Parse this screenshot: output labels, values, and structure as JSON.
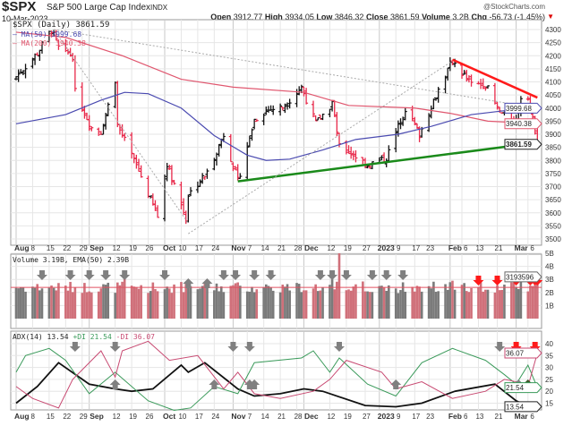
{
  "header": {
    "symbol": "$SPX",
    "name": "S&P 500 Large Cap Index",
    "exchange": "INDX",
    "watermark": "@StockCharts.com",
    "date": "10-Mar-2023",
    "open_label": "Open",
    "open": "3912.77",
    "high_label": "High",
    "high": "3934.05",
    "low_label": "Low",
    "low": "3846.32",
    "close_label": "Close",
    "close": "3861.59",
    "volume_label": "Volume",
    "volume": "3.2B",
    "chg_label": "Chg",
    "chg": "-56.73 (-1.45%)",
    "chg_icon": "triangle-down"
  },
  "colors": {
    "up": "#111111",
    "down": "#e8294a",
    "ma50": "#4a4ab0",
    "ma200": "#e0566e",
    "support": "#1a8a1a",
    "resistance": "#ff1a1a",
    "adx": "#111111",
    "plus_di": "#3a9a5a",
    "minus_di": "#c84a72",
    "vol_up": "#7a7a7a",
    "vol_down": "#d0707a"
  },
  "chart_data": [
    {
      "type": "ohlc",
      "legend": {
        "price": "$SPX (Daily) 3861.59",
        "ma50": "MA(50) 3999.68",
        "ma200": "MA(200) 3940.38"
      },
      "tags": {
        "ma50": "3999.68",
        "ma200": "3940.38",
        "close": "3861.59"
      },
      "ylim": [
        3480,
        4330
      ],
      "yticks": [
        4300,
        4250,
        4200,
        4150,
        4100,
        4050,
        4000,
        3950,
        3900,
        3850,
        3800,
        3750,
        3700,
        3650,
        3600,
        3550,
        3500
      ],
      "close_path": [
        [
          "2022-08-01",
          4120
        ],
        [
          "2022-08-04",
          4150
        ],
        [
          "2022-08-10",
          4210
        ],
        [
          "2022-08-16",
          4300
        ],
        [
          "2022-08-19",
          4230
        ],
        [
          "2022-08-25",
          4200
        ],
        [
          "2022-08-26",
          4060
        ],
        [
          "2022-09-02",
          3925
        ],
        [
          "2022-09-06",
          3910
        ],
        [
          "2022-09-12",
          4110
        ],
        [
          "2022-09-13",
          3935
        ],
        [
          "2022-09-22",
          3760
        ],
        [
          "2022-09-30",
          3585
        ],
        [
          "2022-10-04",
          3790
        ],
        [
          "2022-10-12",
          3578
        ],
        [
          "2022-10-13",
          3670
        ],
        [
          "2022-10-21",
          3752
        ],
        [
          "2022-10-28",
          3900
        ],
        [
          "2022-11-03",
          3720
        ],
        [
          "2022-11-10",
          3956
        ],
        [
          "2022-11-15",
          3992
        ],
        [
          "2022-11-22",
          4003
        ],
        [
          "2022-11-30",
          4080
        ],
        [
          "2022-12-06",
          3941
        ],
        [
          "2022-12-13",
          4019
        ],
        [
          "2022-12-16",
          3852
        ],
        [
          "2022-12-22",
          3822
        ],
        [
          "2022-12-28",
          3783
        ],
        [
          "2023-01-05",
          3808
        ],
        [
          "2023-01-13",
          3999
        ],
        [
          "2023-01-19",
          3899
        ],
        [
          "2023-01-27",
          4070
        ],
        [
          "2023-02-02",
          4180
        ],
        [
          "2023-02-10",
          4090
        ],
        [
          "2023-02-16",
          4090
        ],
        [
          "2023-02-21",
          3997
        ],
        [
          "2023-02-24",
          3970
        ],
        [
          "2023-03-01",
          3951
        ],
        [
          "2023-03-03",
          4045
        ],
        [
          "2023-03-06",
          4048
        ],
        [
          "2023-03-07",
          3986
        ],
        [
          "2023-03-09",
          3918
        ],
        [
          "2023-03-10",
          3861.59
        ]
      ],
      "ma50": [
        [
          "2022-08-01",
          3940
        ],
        [
          "2022-08-22",
          3975
        ],
        [
          "2022-09-06",
          4030
        ],
        [
          "2022-09-16",
          4060
        ],
        [
          "2022-09-26",
          4055
        ],
        [
          "2022-10-10",
          4000
        ],
        [
          "2022-10-24",
          3895
        ],
        [
          "2022-11-07",
          3820
        ],
        [
          "2022-11-15",
          3800
        ],
        [
          "2022-11-25",
          3805
        ],
        [
          "2022-12-09",
          3840
        ],
        [
          "2022-12-23",
          3880
        ],
        [
          "2023-01-10",
          3900
        ],
        [
          "2023-01-24",
          3930
        ],
        [
          "2023-02-10",
          3975
        ],
        [
          "2023-02-24",
          3990
        ],
        [
          "2023-03-10",
          3999.68
        ]
      ],
      "ma200": [
        [
          "2022-08-01",
          4290
        ],
        [
          "2022-08-22",
          4270
        ],
        [
          "2022-09-15",
          4200
        ],
        [
          "2022-10-10",
          4110
        ],
        [
          "2022-11-01",
          4080
        ],
        [
          "2022-12-01",
          4060
        ],
        [
          "2022-12-20",
          4010
        ],
        [
          "2023-01-17",
          4000
        ],
        [
          "2023-02-01",
          3980
        ],
        [
          "2023-02-17",
          3950
        ],
        [
          "2023-03-10",
          3940.38
        ]
      ],
      "trendlines": [
        {
          "kind": "support",
          "from": [
            "2022-11-03",
            3720
          ],
          "to": [
            "2023-03-10",
            3868
          ]
        },
        {
          "kind": "resistance",
          "from": [
            "2023-02-02",
            4185
          ],
          "to": [
            "2023-03-10",
            4040
          ]
        },
        {
          "kind": "dotted",
          "from": [
            "2022-08-17",
            4300
          ],
          "to": [
            "2022-10-13",
            3560
          ]
        },
        {
          "kind": "dotted",
          "from": [
            "2022-08-17",
            4300
          ],
          "to": [
            "2023-03-10",
            4000
          ]
        },
        {
          "kind": "dotted",
          "from": [
            "2022-10-13",
            3520
          ],
          "to": [
            "2023-02-02",
            4180
          ]
        }
      ]
    },
    {
      "type": "bar",
      "legend": "Volume 3.19B, EMA(50) 2.39B",
      "tag": "3193596",
      "yticks": [
        {
          "label": "5B",
          "v": 5
        },
        {
          "label": "4B",
          "v": 4
        },
        {
          "label": "3B",
          "v": 3
        },
        {
          "label": "2B",
          "v": 2
        },
        {
          "label": "1B",
          "v": 1
        }
      ],
      "typical_volume_B": 2.4,
      "ema50_B": 2.39,
      "spikes_B": [
        [
          "2022-12-16",
          5.0
        ],
        [
          "2022-09-16",
          3.3
        ],
        [
          "2022-12-13",
          3.0
        ],
        [
          "2023-02-02",
          2.9
        ],
        [
          "2023-03-10",
          3.19
        ]
      ],
      "arrows": [
        [
          "2022-08-12",
          "down",
          "#808080"
        ],
        [
          "2022-08-24",
          "down",
          "#808080"
        ],
        [
          "2022-09-01",
          "down",
          "#808080"
        ],
        [
          "2022-09-08",
          "down",
          "#808080"
        ],
        [
          "2022-09-16",
          "down",
          "#808080"
        ],
        [
          "2022-10-03",
          "down",
          "#808080"
        ],
        [
          "2022-10-13",
          "up",
          "#808080"
        ],
        [
          "2022-10-21",
          "up",
          "#808080"
        ],
        [
          "2022-10-28",
          "down",
          "#808080"
        ],
        [
          "2022-11-02",
          "down",
          "#808080"
        ],
        [
          "2022-11-10",
          "down",
          "#808080"
        ],
        [
          "2022-11-17",
          "down",
          "#808080"
        ],
        [
          "2022-12-08",
          "down",
          "#808080"
        ],
        [
          "2022-12-13",
          "down",
          "#808080"
        ],
        [
          "2022-12-19",
          "down",
          "#808080"
        ],
        [
          "2022-12-30",
          "down",
          "#808080"
        ],
        [
          "2023-01-05",
          "down",
          "#808080"
        ],
        [
          "2023-01-12",
          "down",
          "#808080"
        ],
        [
          "2023-02-13",
          "down",
          "#ff1a1a"
        ],
        [
          "2023-02-21",
          "down",
          "#ff1a1a"
        ],
        [
          "2023-03-01",
          "down",
          "#ff1a1a"
        ],
        [
          "2023-03-07",
          "down",
          "#ff1a1a"
        ],
        [
          "2023-03-09",
          "down",
          "#ff1a1a"
        ],
        [
          "2023-03-10",
          "down",
          "#ff1a1a"
        ]
      ]
    },
    {
      "type": "line",
      "legend": {
        "adx": "ADX(14) 13.54",
        "plus_di": "+DI 21.54",
        "minus_di": "-DI 36.07"
      },
      "tags": {
        "minus_di": "36.07",
        "plus_di": "21.54",
        "adx": "13.54"
      },
      "yticks": [
        40,
        35,
        30,
        25,
        20,
        15
      ],
      "series": [
        {
          "name": "ADX(14)",
          "values": [
            [
              "2022-08-01",
              15
            ],
            [
              "2022-08-10",
              22
            ],
            [
              "2022-08-19",
              32
            ],
            [
              "2022-09-01",
              23
            ],
            [
              "2022-09-12",
              21
            ],
            [
              "2022-09-19",
              20
            ],
            [
              "2022-09-28",
              21
            ],
            [
              "2022-10-10",
              31
            ],
            [
              "2022-10-13",
              28
            ],
            [
              "2022-10-20",
              32
            ],
            [
              "2022-11-03",
              21
            ],
            [
              "2022-11-10",
              18
            ],
            [
              "2022-11-21",
              19
            ],
            [
              "2022-12-01",
              21
            ],
            [
              "2022-12-09",
              20
            ],
            [
              "2022-12-27",
              14
            ],
            [
              "2023-01-09",
              13.5
            ],
            [
              "2023-01-20",
              15
            ],
            [
              "2023-02-03",
              20
            ],
            [
              "2023-02-20",
              23
            ],
            [
              "2023-03-01",
              16
            ],
            [
              "2023-03-08",
              12.5
            ],
            [
              "2023-03-10",
              13.54
            ]
          ]
        },
        {
          "name": "+DI",
          "values": [
            [
              "2022-08-01",
              28
            ],
            [
              "2022-08-05",
              35
            ],
            [
              "2022-08-15",
              38
            ],
            [
              "2022-08-22",
              33
            ],
            [
              "2022-09-01",
              19
            ],
            [
              "2022-09-12",
              28
            ],
            [
              "2022-09-26",
              16
            ],
            [
              "2022-10-07",
              12
            ],
            [
              "2022-10-14",
              13
            ],
            [
              "2022-10-24",
              22
            ],
            [
              "2022-11-03",
              19
            ],
            [
              "2022-11-10",
              32
            ],
            [
              "2022-11-30",
              34
            ],
            [
              "2022-12-05",
              37
            ],
            [
              "2022-12-12",
              28
            ],
            [
              "2022-12-16",
              34
            ],
            [
              "2022-12-28",
              23
            ],
            [
              "2023-01-09",
              18
            ],
            [
              "2023-01-20",
              32
            ],
            [
              "2023-02-02",
              38
            ],
            [
              "2023-02-16",
              33
            ],
            [
              "2023-02-24",
              27
            ],
            [
              "2023-03-01",
              23
            ],
            [
              "2023-03-06",
              31
            ],
            [
              "2023-03-10",
              21.54
            ]
          ]
        },
        {
          "name": "-DI",
          "values": [
            [
              "2022-08-01",
              22
            ],
            [
              "2022-08-08",
              17
            ],
            [
              "2022-08-19",
              13
            ],
            [
              "2022-08-25",
              25
            ],
            [
              "2022-09-06",
              37
            ],
            [
              "2022-09-12",
              26
            ],
            [
              "2022-09-15",
              37
            ],
            [
              "2022-09-26",
              41
            ],
            [
              "2022-10-05",
              33
            ],
            [
              "2022-10-17",
              35
            ],
            [
              "2022-10-28",
              21
            ],
            [
              "2022-11-03",
              28
            ],
            [
              "2022-11-10",
              19
            ],
            [
              "2022-11-21",
              17
            ],
            [
              "2022-12-05",
              20
            ],
            [
              "2022-12-12",
              25
            ],
            [
              "2022-12-19",
              33
            ],
            [
              "2023-01-03",
              28
            ],
            [
              "2023-01-09",
              21
            ],
            [
              "2023-01-20",
              24
            ],
            [
              "2023-02-02",
              17
            ],
            [
              "2023-02-16",
              20
            ],
            [
              "2023-02-24",
              25
            ],
            [
              "2023-03-01",
              24
            ],
            [
              "2023-03-06",
              22
            ],
            [
              "2023-03-10",
              36.07
            ]
          ]
        }
      ],
      "arrows": [
        [
          "2022-08-26",
          "down",
          "#808080"
        ],
        [
          "2022-09-12",
          "down",
          "#808080"
        ],
        [
          "2022-09-12",
          "up",
          "#808080"
        ],
        [
          "2022-11-01",
          "down",
          "#808080"
        ],
        [
          "2022-11-08",
          "down",
          "#808080"
        ],
        [
          "2022-10-24",
          "up",
          "#808080"
        ],
        [
          "2022-11-08",
          "up",
          "#808080"
        ],
        [
          "2022-11-10",
          "up",
          "#808080"
        ],
        [
          "2022-12-16",
          "down",
          "#808080"
        ],
        [
          "2023-01-09",
          "up",
          "#808080"
        ],
        [
          "2023-02-22",
          "down",
          "#808080"
        ],
        [
          "2023-03-02",
          "up",
          "#808080"
        ],
        [
          "2023-03-01",
          "down",
          "#ff1a1a"
        ],
        [
          "2023-03-09",
          "down",
          "#ff1a1a"
        ],
        [
          "2023-03-06",
          "up",
          "#3a5a2a"
        ]
      ]
    }
  ],
  "x_axis": [
    [
      "2022-08-01",
      "Aug",
      true
    ],
    [
      "2022-08-08",
      "8",
      false
    ],
    [
      "2022-08-15",
      "15",
      false
    ],
    [
      "2022-08-22",
      "22",
      false
    ],
    [
      "2022-08-29",
      "29",
      false
    ],
    [
      "2022-09-01",
      "Sep",
      true
    ],
    [
      "2022-09-12",
      "12",
      false
    ],
    [
      "2022-09-19",
      "19",
      false
    ],
    [
      "2022-09-26",
      "26",
      false
    ],
    [
      "2022-10-03",
      "Oct",
      true
    ],
    [
      "2022-10-10",
      "10",
      false
    ],
    [
      "2022-10-17",
      "17",
      false
    ],
    [
      "2022-10-24",
      "24",
      false
    ],
    [
      "2022-11-01",
      "Nov",
      true
    ],
    [
      "2022-11-07",
      "7",
      false
    ],
    [
      "2022-11-14",
      "14",
      false
    ],
    [
      "2022-11-21",
      "21",
      false
    ],
    [
      "2022-11-28",
      "28",
      false
    ],
    [
      "2022-12-01",
      "Dec",
      true
    ],
    [
      "2022-12-12",
      "12",
      false
    ],
    [
      "2022-12-19",
      "19",
      false
    ],
    [
      "2022-12-27",
      "27",
      false
    ],
    [
      "2023-01-02",
      "2023",
      true
    ],
    [
      "2023-01-09",
      "9",
      false
    ],
    [
      "2023-01-17",
      "17",
      false
    ],
    [
      "2023-01-23",
      "23",
      false
    ],
    [
      "2023-02-01",
      "Feb",
      true
    ],
    [
      "2023-02-06",
      "6",
      false
    ],
    [
      "2023-02-13",
      "13",
      false
    ],
    [
      "2023-02-21",
      "21",
      false
    ],
    [
      "2023-03-01",
      "Mar",
      true
    ],
    [
      "2023-03-06",
      "6",
      false
    ]
  ]
}
